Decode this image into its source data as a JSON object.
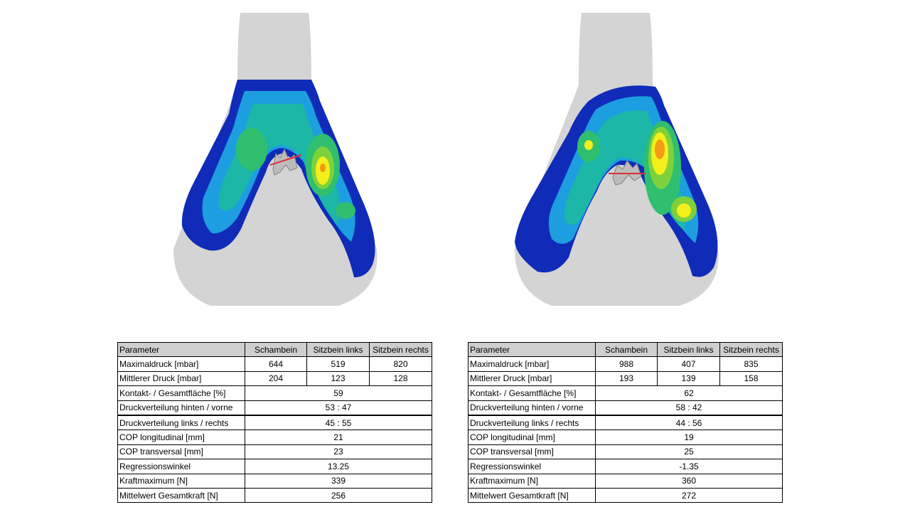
{
  "columns": [
    "Parameter",
    "Schambein",
    "Sitzbein links",
    "Sitzbein rechts"
  ],
  "tables": [
    {
      "rows": [
        {
          "label": "Maximaldruck [mbar]",
          "values": [
            "644",
            "519",
            "820"
          ]
        },
        {
          "label": "Mittlerer Druck [mbar]",
          "values": [
            "204",
            "123",
            "128"
          ]
        },
        {
          "label": "Kontakt- / Gesamtfläche [%]",
          "value": "59"
        },
        {
          "label": "Druckverteilung hinten / vorne",
          "value": "53 : 47"
        },
        {
          "label": "Druckverteilung links / rechts",
          "value": "45 : 55"
        },
        {
          "label": "COP longitudinal [mm]",
          "value": "21"
        },
        {
          "label": "COP transversal [mm]",
          "value": "23"
        },
        {
          "label": "Regressionswinkel",
          "value": "13.25"
        },
        {
          "label": "Kraftmaximum [N]",
          "value": "339"
        },
        {
          "label": "Mittelwert Gesamtkraft [N]",
          "value": "256"
        }
      ]
    },
    {
      "rows": [
        {
          "label": "Maximaldruck [mbar]",
          "values": [
            "988",
            "407",
            "835"
          ]
        },
        {
          "label": "Mittlerer Druck [mbar]",
          "values": [
            "193",
            "139",
            "158"
          ]
        },
        {
          "label": "Kontakt- / Gesamtfläche [%]",
          "value": "62"
        },
        {
          "label": "Druckverteilung hinten / vorne",
          "value": "58 : 42"
        },
        {
          "label": "Druckverteilung links / rechts",
          "value": "44 : 56"
        },
        {
          "label": "COP longitudinal [mm]",
          "value": "19"
        },
        {
          "label": "COP transversal [mm]",
          "value": "25"
        },
        {
          "label": "Regressionswinkel",
          "value": "-1.35"
        },
        {
          "label": "Kraftmaximum [N]",
          "value": "360"
        },
        {
          "label": "Mittelwert Gesamtkraft [N]",
          "value": "272"
        }
      ]
    }
  ],
  "colors": {
    "silhouette": "#d4d4d4",
    "cop_line": "#d9303a",
    "heat_scale": [
      "#102bb8",
      "#1e4fe0",
      "#1d9ee0",
      "#1cb7a6",
      "#2fbf6e",
      "#7fd13c",
      "#f3ef1c",
      "#f29b14"
    ]
  }
}
